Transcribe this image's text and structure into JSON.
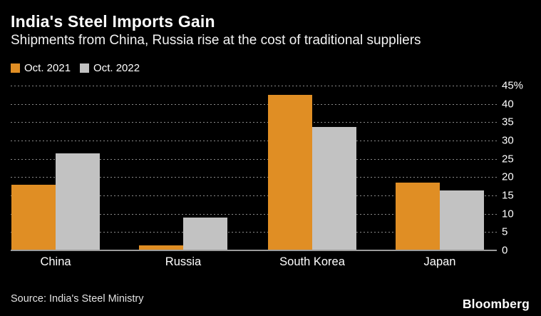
{
  "header": {
    "title": "India's Steel Imports Gain",
    "subtitle": "Shipments from China, Russia rise at the cost of traditional suppliers"
  },
  "legend": {
    "items": [
      {
        "label": "Oct. 2021",
        "color": "#E08E24"
      },
      {
        "label": "Oct. 2022",
        "color": "#C2C2C2"
      }
    ]
  },
  "footer": {
    "source": "Source: India's Steel Ministry",
    "brand": "Bloomberg"
  },
  "colors": {
    "background": "#000000",
    "text": "#FFFFFF",
    "gridline": "#8A8A8A",
    "baseline": "#9B9B9B",
    "series_oct_2021": "#E08E24",
    "series_oct_2022": "#C2C2C2"
  },
  "chart_data": {
    "type": "bar",
    "title": "India's Steel Imports Gain",
    "subtitle": "Shipments from China, Russia rise at the cost of traditional suppliers",
    "categories": [
      "China",
      "Russia",
      "South Korea",
      "Japan"
    ],
    "series": [
      {
        "name": "Oct. 2021",
        "color": "#E08E24",
        "values": [
          18,
          1.3,
          42.5,
          18.5
        ]
      },
      {
        "name": "Oct. 2022",
        "color": "#C2C2C2",
        "values": [
          26.5,
          9,
          33.7,
          16.3
        ]
      }
    ],
    "ylabel": "",
    "xlabel": "",
    "ylim": [
      0,
      45
    ],
    "ytick_step": 5,
    "yticks": [
      "45%",
      "40",
      "35",
      "30",
      "25",
      "20",
      "15",
      "10",
      "5",
      "0"
    ],
    "y_axis_side": "right",
    "grid": "horizontal-dotted",
    "legend_position": "top-left",
    "source": "Source: India's Steel Ministry",
    "brand": "Bloomberg"
  }
}
